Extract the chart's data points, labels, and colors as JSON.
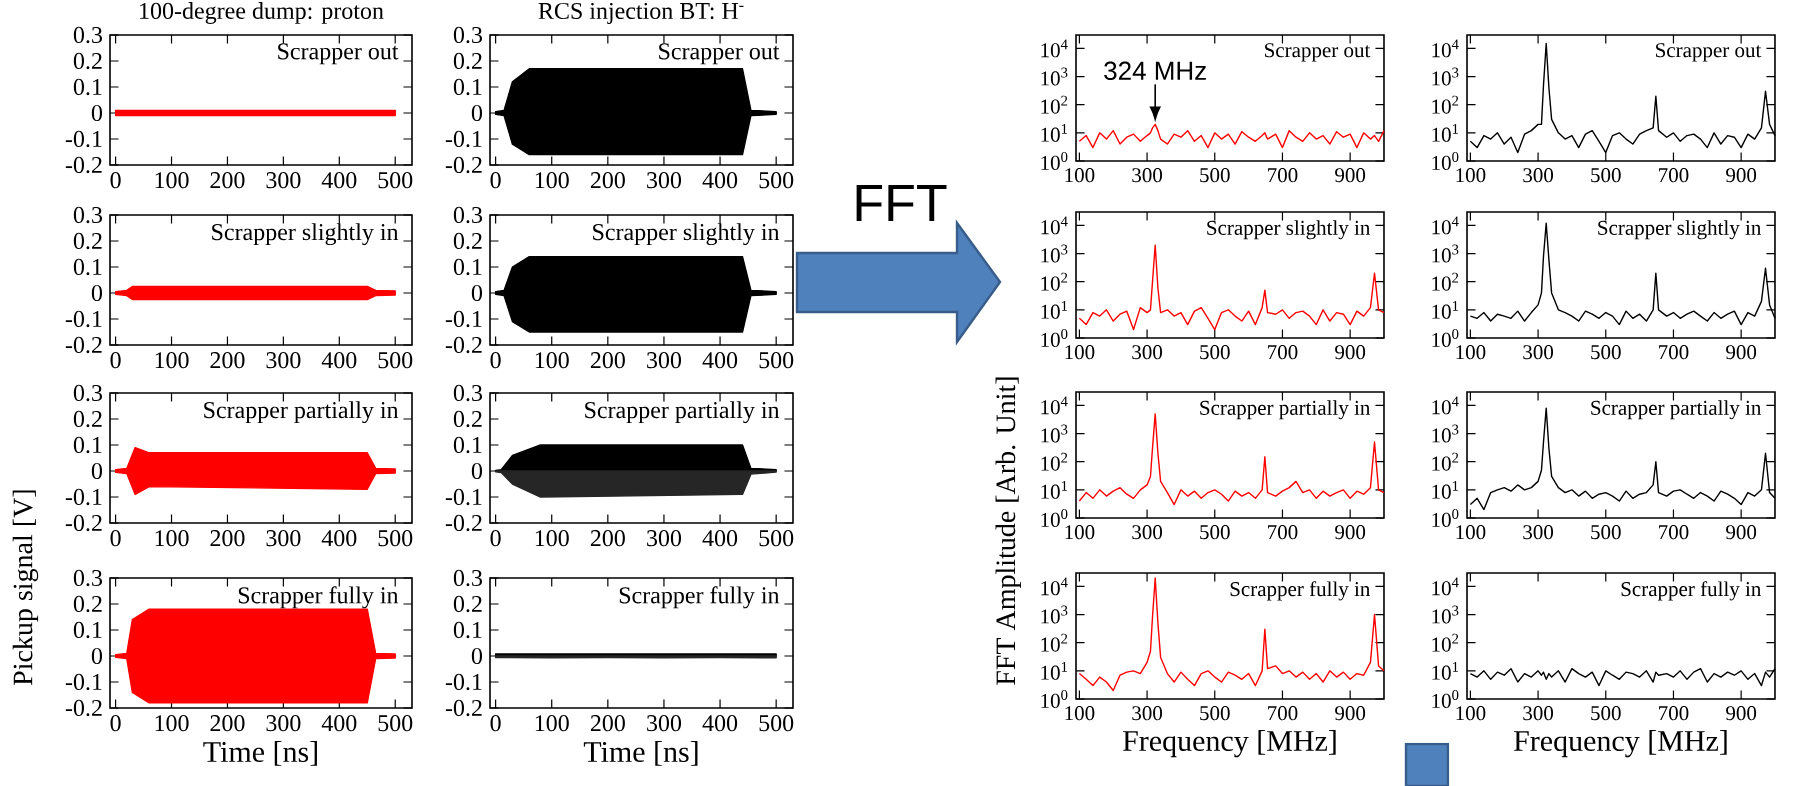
{
  "chart_data": [
    {
      "type": "line",
      "title": "100-degree dump: proton",
      "annotations": [
        "Scrapper out"
      ],
      "xlim": [
        -10,
        530
      ],
      "xticks": [
        0,
        100,
        200,
        300,
        400,
        500
      ],
      "ylim": [
        -0.2,
        0.3
      ],
      "yticks": [
        -0.2,
        -0.1,
        0,
        0.1,
        0.2,
        0.3
      ],
      "series": [
        {
          "type": "area",
          "color": "#ff0000",
          "x": [
            0,
            100,
            200,
            300,
            400,
            500
          ],
          "values": [
            0.01,
            0.01,
            0.01,
            0.01,
            0.01,
            0.01
          ]
        },
        {
          "type": "area",
          "color": "#ff0000",
          "x": [
            0,
            100,
            200,
            300,
            400,
            500
          ],
          "values": [
            -0.01,
            -0.01,
            -0.01,
            -0.01,
            -0.01,
            -0.01
          ]
        }
      ]
    },
    {
      "type": "line",
      "title": "RCS injection BT: H$^{-}$",
      "annotations": [
        "Scrapper out"
      ],
      "xlim": [
        -10,
        530
      ],
      "xticks": [
        0,
        100,
        200,
        300,
        400,
        500
      ],
      "ylim": [
        -0.2,
        0.3
      ],
      "yticks": [
        -0.2,
        -0.1,
        0,
        0.1,
        0.2,
        0.3
      ],
      "series": [
        {
          "type": "area",
          "color": "#000000",
          "x": [
            0,
            15,
            30,
            60,
            440,
            455,
            500
          ],
          "values": [
            0.005,
            0.01,
            0.12,
            0.17,
            0.17,
            0.01,
            0.005
          ]
        },
        {
          "type": "area",
          "color": "#000000",
          "x": [
            0,
            15,
            30,
            60,
            440,
            455,
            500
          ],
          "values": [
            -0.005,
            -0.01,
            -0.12,
            -0.16,
            -0.16,
            -0.01,
            -0.005
          ]
        }
      ]
    },
    {
      "type": "line",
      "log": true,
      "annotations": [
        {
          "text": "324 MHz",
          "x": 324,
          "y": 20
        },
        "Scrapper out"
      ],
      "x": [
        100,
        120,
        140,
        160,
        180,
        200,
        220,
        240,
        260,
        280,
        300,
        310,
        316,
        324,
        332,
        340,
        360,
        380,
        400,
        420,
        440,
        460,
        480,
        500,
        520,
        540,
        560,
        580,
        600,
        620,
        640,
        648,
        656,
        680,
        700,
        720,
        740,
        760,
        780,
        800,
        820,
        840,
        860,
        880,
        900,
        920,
        940,
        960,
        972,
        984,
        1000
      ],
      "xlim": [
        90,
        1000
      ],
      "xticks": [
        100,
        300,
        500,
        700,
        900
      ],
      "ylim": [
        1,
        30000
      ],
      "yticks": [
        {
          "value": 1,
          "label": "10$^{0}$"
        },
        {
          "value": 10,
          "label": "10$^{1}$"
        },
        {
          "value": 100,
          "label": "10$^{2}$"
        },
        {
          "value": 1000,
          "label": "10$^{3}$"
        },
        {
          "value": 10000,
          "label": "10$^{4}$"
        }
      ],
      "series": [
        {
          "color": "#ff0000",
          "values": [
            5,
            8,
            3,
            10,
            6,
            12,
            4,
            7,
            9,
            5,
            8,
            10,
            15,
            20,
            12,
            6,
            4,
            9,
            7,
            12,
            5,
            8,
            3,
            10,
            6,
            9,
            4,
            11,
            7,
            5,
            8,
            10,
            6,
            9,
            3,
            12,
            7,
            5,
            10,
            6,
            8,
            4,
            11,
            7,
            9,
            3,
            10,
            6,
            8,
            5,
            12
          ]
        }
      ]
    },
    {
      "type": "line",
      "log": true,
      "annotations": [
        "Scrapper out"
      ],
      "x": [
        100,
        120,
        140,
        160,
        180,
        200,
        220,
        240,
        260,
        280,
        300,
        310,
        316,
        324,
        332,
        340,
        360,
        380,
        400,
        420,
        440,
        460,
        480,
        500,
        520,
        540,
        560,
        580,
        600,
        620,
        640,
        648,
        656,
        680,
        700,
        720,
        740,
        760,
        780,
        800,
        820,
        840,
        860,
        880,
        900,
        920,
        940,
        960,
        972,
        984,
        1000
      ],
      "xlim": [
        90,
        1000
      ],
      "xticks": [
        100,
        300,
        500,
        700,
        900
      ],
      "ylim": [
        1,
        30000
      ],
      "yticks": [
        {
          "value": 1,
          "label": "10$^{0}$"
        },
        {
          "value": 10,
          "label": "10$^{1}$"
        },
        {
          "value": 100,
          "label": "10$^{2}$"
        },
        {
          "value": 1000,
          "label": "10$^{3}$"
        },
        {
          "value": 10000,
          "label": "10$^{4}$"
        }
      ],
      "series": [
        {
          "color": "#000000",
          "values": [
            5,
            3,
            8,
            6,
            10,
            4,
            7,
            2,
            9,
            12,
            20,
            20,
            500,
            15000,
            400,
            30,
            10,
            6,
            8,
            3,
            9,
            12,
            5,
            2,
            8,
            10,
            6,
            4,
            9,
            12,
            15,
            200,
            12,
            7,
            10,
            5,
            8,
            9,
            6,
            3,
            10,
            4,
            8,
            7,
            3,
            9,
            6,
            15,
            300,
            20,
            8
          ]
        }
      ]
    },
    {
      "type": "line",
      "annotations": [
        "Scrapper slightly in"
      ],
      "xlim": [
        -10,
        530
      ],
      "xticks": [
        0,
        100,
        200,
        300,
        400,
        500
      ],
      "ylim": [
        -0.2,
        0.3
      ],
      "yticks": [
        -0.2,
        -0.1,
        0,
        0.1,
        0.2,
        0.3
      ],
      "series": [
        {
          "type": "area",
          "color": "#ff0000",
          "x": [
            0,
            20,
            30,
            450,
            465,
            500
          ],
          "values": [
            0.005,
            0.01,
            0.025,
            0.025,
            0.01,
            0.008
          ]
        },
        {
          "type": "area",
          "color": "#ff0000",
          "x": [
            0,
            20,
            30,
            450,
            465,
            500
          ],
          "values": [
            -0.005,
            -0.01,
            -0.025,
            -0.025,
            -0.01,
            -0.008
          ]
        }
      ]
    },
    {
      "type": "line",
      "annotations": [
        "Scrapper slightly in"
      ],
      "xlim": [
        -10,
        530
      ],
      "xticks": [
        0,
        100,
        200,
        300,
        400,
        500
      ],
      "ylim": [
        -0.2,
        0.3
      ],
      "yticks": [
        -0.2,
        -0.1,
        0,
        0.1,
        0.2,
        0.3
      ],
      "series": [
        {
          "type": "area",
          "color": "#000000",
          "x": [
            0,
            15,
            30,
            60,
            440,
            455,
            500
          ],
          "values": [
            0.005,
            0.01,
            0.1,
            0.14,
            0.14,
            0.01,
            0.005
          ]
        },
        {
          "type": "area",
          "color": "#000000",
          "x": [
            0,
            15,
            30,
            60,
            440,
            455,
            500
          ],
          "values": [
            -0.005,
            -0.01,
            -0.11,
            -0.15,
            -0.15,
            -0.01,
            -0.005
          ]
        }
      ]
    },
    {
      "type": "line",
      "log": true,
      "annotations": [
        "Scrapper slightly in"
      ],
      "x": [
        100,
        120,
        140,
        160,
        180,
        200,
        220,
        240,
        260,
        280,
        300,
        310,
        316,
        324,
        332,
        340,
        360,
        380,
        400,
        420,
        440,
        460,
        480,
        500,
        520,
        540,
        560,
        580,
        600,
        620,
        640,
        648,
        656,
        680,
        700,
        720,
        740,
        760,
        780,
        800,
        820,
        840,
        860,
        880,
        900,
        920,
        940,
        960,
        972,
        984,
        1000
      ],
      "xlim": [
        90,
        1000
      ],
      "xticks": [
        100,
        300,
        500,
        700,
        900
      ],
      "ylim": [
        1,
        30000
      ],
      "yticks": [
        {
          "value": 1,
          "label": "10$^{0}$"
        },
        {
          "value": 10,
          "label": "10$^{1}$"
        },
        {
          "value": 100,
          "label": "10$^{2}$"
        },
        {
          "value": 1000,
          "label": "10$^{3}$"
        },
        {
          "value": 10000,
          "label": "10$^{4}$"
        }
      ],
      "series": [
        {
          "color": "#ff0000",
          "values": [
            5,
            3,
            8,
            6,
            10,
            4,
            7,
            9,
            2,
            12,
            8,
            10,
            100,
            2000,
            60,
            8,
            10,
            6,
            8,
            3,
            9,
            12,
            5,
            2,
            8,
            10,
            6,
            4,
            9,
            3,
            12,
            50,
            8,
            7,
            10,
            5,
            8,
            9,
            6,
            3,
            10,
            4,
            8,
            7,
            3,
            9,
            6,
            12,
            200,
            10,
            8
          ]
        }
      ]
    },
    {
      "type": "line",
      "log": true,
      "annotations": [
        "Scrapper slightly in"
      ],
      "x": [
        100,
        120,
        140,
        160,
        180,
        200,
        220,
        240,
        260,
        280,
        300,
        310,
        316,
        324,
        332,
        340,
        360,
        380,
        400,
        420,
        440,
        460,
        480,
        500,
        520,
        540,
        560,
        580,
        600,
        620,
        640,
        648,
        656,
        680,
        700,
        720,
        740,
        760,
        780,
        800,
        820,
        840,
        860,
        880,
        900,
        920,
        940,
        960,
        972,
        984,
        1000
      ],
      "xlim": [
        90,
        1000
      ],
      "xticks": [
        100,
        300,
        500,
        700,
        900
      ],
      "ylim": [
        1,
        30000
      ],
      "yticks": [
        {
          "value": 1,
          "label": "10$^{0}$"
        },
        {
          "value": 10,
          "label": "10$^{1}$"
        },
        {
          "value": 100,
          "label": "10$^{2}$"
        },
        {
          "value": 1000,
          "label": "10$^{3}$"
        },
        {
          "value": 10000,
          "label": "10$^{4}$"
        }
      ],
      "series": [
        {
          "color": "#000000",
          "values": [
            6,
            5,
            8,
            4,
            7,
            6,
            5,
            9,
            4,
            8,
            15,
            40,
            800,
            12000,
            600,
            40,
            10,
            8,
            6,
            4,
            9,
            7,
            5,
            8,
            6,
            3,
            9,
            5,
            7,
            4,
            10,
            200,
            10,
            6,
            8,
            5,
            7,
            9,
            6,
            4,
            8,
            5,
            7,
            9,
            3,
            8,
            6,
            20,
            300,
            15,
            5
          ]
        }
      ]
    },
    {
      "type": "line",
      "annotations": [
        "Scrapper partially in"
      ],
      "xlim": [
        -10,
        530
      ],
      "xticks": [
        0,
        100,
        200,
        300,
        400,
        500
      ],
      "ylim": [
        -0.2,
        0.3
      ],
      "yticks": [
        -0.2,
        -0.1,
        0,
        0.1,
        0.2,
        0.3
      ],
      "series": [
        {
          "type": "area",
          "color": "#ff0000",
          "x": [
            0,
            20,
            35,
            60,
            450,
            465,
            500
          ],
          "values": [
            0.005,
            0.01,
            0.09,
            0.07,
            0.07,
            0.01,
            0.008
          ]
        },
        {
          "type": "area",
          "color": "#ff0000",
          "x": [
            0,
            20,
            35,
            60,
            450,
            465,
            500
          ],
          "values": [
            -0.005,
            -0.01,
            -0.09,
            -0.06,
            -0.07,
            -0.01,
            -0.008
          ]
        }
      ]
    },
    {
      "type": "line",
      "annotations": [
        "Scrapper partially in"
      ],
      "xlim": [
        -10,
        530
      ],
      "xticks": [
        0,
        100,
        200,
        300,
        400,
        500
      ],
      "ylim": [
        -0.2,
        0.3
      ],
      "yticks": [
        -0.2,
        -0.1,
        0,
        0.1,
        0.2,
        0.3
      ],
      "series": [
        {
          "type": "area",
          "color": "#000000",
          "x": [
            0,
            10,
            30,
            80,
            440,
            455,
            500
          ],
          "values": [
            0.002,
            0.005,
            0.06,
            0.1,
            0.1,
            0.01,
            0.005
          ]
        },
        {
          "type": "area",
          "color": "#262626",
          "x": [
            0,
            10,
            30,
            80,
            440,
            455,
            500
          ],
          "values": [
            -0.003,
            -0.006,
            -0.05,
            -0.1,
            -0.09,
            -0.012,
            -0.004
          ]
        }
      ]
    },
    {
      "type": "line",
      "log": true,
      "ylabel": "FFT Amplitude [Arb. Unit]",
      "annotations": [
        "Scrapper partially in"
      ],
      "x": [
        100,
        120,
        140,
        160,
        180,
        200,
        220,
        240,
        260,
        280,
        300,
        310,
        316,
        324,
        332,
        340,
        360,
        380,
        400,
        420,
        440,
        460,
        480,
        500,
        520,
        540,
        560,
        580,
        600,
        620,
        640,
        648,
        656,
        680,
        700,
        720,
        740,
        760,
        780,
        800,
        820,
        840,
        860,
        880,
        900,
        920,
        940,
        960,
        972,
        984,
        1000
      ],
      "xlim": [
        90,
        1000
      ],
      "xticks": [
        100,
        300,
        500,
        700,
        900
      ],
      "ylim": [
        1,
        30000
      ],
      "yticks": [
        {
          "value": 1,
          "label": "10$^{0}$"
        },
        {
          "value": 10,
          "label": "10$^{1}$"
        },
        {
          "value": 100,
          "label": "10$^{2}$"
        },
        {
          "value": 1000,
          "label": "10$^{3}$"
        },
        {
          "value": 10000,
          "label": "10$^{4}$"
        }
      ],
      "series": [
        {
          "color": "#ff0000",
          "values": [
            4,
            8,
            5,
            10,
            6,
            9,
            12,
            7,
            5,
            10,
            15,
            30,
            300,
            5000,
            200,
            20,
            8,
            3,
            10,
            6,
            9,
            5,
            8,
            10,
            7,
            4,
            9,
            6,
            8,
            5,
            10,
            150,
            8,
            6,
            9,
            12,
            20,
            8,
            10,
            5,
            9,
            6,
            8,
            10,
            5,
            9,
            7,
            12,
            500,
            10,
            8
          ]
        }
      ]
    },
    {
      "type": "line",
      "log": true,
      "annotations": [
        "Scrapper partially in"
      ],
      "x": [
        100,
        120,
        140,
        160,
        180,
        200,
        220,
        240,
        260,
        280,
        300,
        310,
        316,
        324,
        332,
        340,
        360,
        380,
        400,
        420,
        440,
        460,
        480,
        500,
        520,
        540,
        560,
        580,
        600,
        620,
        640,
        648,
        656,
        680,
        700,
        720,
        740,
        760,
        780,
        800,
        820,
        840,
        860,
        880,
        900,
        920,
        940,
        960,
        972,
        984,
        1000
      ],
      "xlim": [
        90,
        1000
      ],
      "xticks": [
        100,
        300,
        500,
        700,
        900
      ],
      "ylim": [
        1,
        30000
      ],
      "yticks": [
        {
          "value": 1,
          "label": "10$^{0}$"
        },
        {
          "value": 10,
          "label": "10$^{1}$"
        },
        {
          "value": 100,
          "label": "10$^{2}$"
        },
        {
          "value": 1000,
          "label": "10$^{3}$"
        },
        {
          "value": 10000,
          "label": "10$^{4}$"
        }
      ],
      "series": [
        {
          "color": "#000000",
          "values": [
            3,
            5,
            2,
            8,
            10,
            12,
            9,
            15,
            10,
            12,
            20,
            50,
            500,
            8000,
            300,
            30,
            12,
            8,
            10,
            6,
            9,
            5,
            7,
            8,
            6,
            4,
            9,
            5,
            7,
            8,
            15,
            100,
            8,
            6,
            9,
            10,
            7,
            5,
            8,
            6,
            4,
            9,
            7,
            5,
            3,
            8,
            6,
            10,
            200,
            8,
            5
          ]
        }
      ]
    },
    {
      "type": "line",
      "xlabel": "Time [ns]",
      "ylabel": "Pickup signal [V]",
      "annotations": [
        "Scrapper fully in"
      ],
      "xlim": [
        -10,
        530
      ],
      "xticks": [
        0,
        100,
        200,
        300,
        400,
        500
      ],
      "ylim": [
        -0.2,
        0.3
      ],
      "yticks": [
        -0.2,
        -0.1,
        0,
        0.1,
        0.2,
        0.3
      ],
      "series": [
        {
          "type": "area",
          "color": "#ff0000",
          "x": [
            0,
            20,
            30,
            60,
            450,
            465,
            500
          ],
          "values": [
            0.005,
            0.01,
            0.14,
            0.18,
            0.18,
            0.01,
            0.008
          ]
        },
        {
          "type": "area",
          "color": "#ff0000",
          "x": [
            0,
            20,
            30,
            60,
            450,
            465,
            500
          ],
          "values": [
            -0.005,
            -0.01,
            -0.14,
            -0.18,
            -0.18,
            -0.01,
            -0.008
          ]
        }
      ]
    },
    {
      "type": "line",
      "xlabel": "Time [ns]",
      "annotations": [
        "Scrapper fully in"
      ],
      "xlim": [
        -10,
        530
      ],
      "xticks": [
        0,
        100,
        200,
        300,
        400,
        500
      ],
      "ylim": [
        -0.2,
        0.3
      ],
      "yticks": [
        -0.2,
        -0.1,
        0,
        0.1,
        0.2,
        0.3
      ],
      "series": [
        {
          "type": "area",
          "color": "#000000",
          "x": [
            0,
            100,
            200,
            300,
            400,
            500
          ],
          "values": [
            0.008,
            0.008,
            0.008,
            0.008,
            0.008,
            0.008
          ]
        },
        {
          "type": "area",
          "color": "#262626",
          "x": [
            0,
            100,
            200,
            300,
            400,
            500
          ],
          "values": [
            -0.006,
            -0.007,
            -0.006,
            -0.007,
            -0.006,
            -0.007
          ]
        }
      ]
    },
    {
      "type": "line",
      "log": true,
      "xlabel": "Frequency [MHz]",
      "annotations": [
        "Scrapper fully in"
      ],
      "x": [
        100,
        120,
        140,
        160,
        180,
        200,
        220,
        240,
        260,
        280,
        300,
        310,
        316,
        324,
        332,
        340,
        360,
        380,
        400,
        420,
        440,
        460,
        480,
        500,
        520,
        540,
        560,
        580,
        600,
        620,
        640,
        648,
        656,
        680,
        700,
        720,
        740,
        760,
        780,
        800,
        820,
        840,
        860,
        880,
        900,
        920,
        940,
        960,
        972,
        984,
        1000
      ],
      "xlim": [
        90,
        1000
      ],
      "xticks": [
        100,
        300,
        500,
        700,
        900
      ],
      "ylim": [
        1,
        30000
      ],
      "yticks": [
        {
          "value": 1,
          "label": "10$^{0}$"
        },
        {
          "value": 10,
          "label": "10$^{1}$"
        },
        {
          "value": 100,
          "label": "10$^{2}$"
        },
        {
          "value": 1000,
          "label": "10$^{3}$"
        },
        {
          "value": 10000,
          "label": "10$^{4}$"
        }
      ],
      "series": [
        {
          "color": "#ff0000",
          "values": [
            8,
            5,
            3,
            6,
            4,
            2,
            7,
            9,
            10,
            8,
            20,
            50,
            800,
            20000,
            500,
            30,
            8,
            4,
            9,
            5,
            3,
            8,
            10,
            6,
            4,
            9,
            7,
            5,
            8,
            3,
            10,
            300,
            12,
            15,
            8,
            10,
            6,
            9,
            5,
            8,
            4,
            10,
            6,
            9,
            5,
            8,
            7,
            20,
            1000,
            15,
            10
          ]
        }
      ]
    },
    {
      "type": "line",
      "log": true,
      "xlabel": "Frequency [MHz]",
      "annotations": [
        "Scrapper fully in"
      ],
      "x": [
        100,
        120,
        140,
        160,
        180,
        200,
        220,
        240,
        260,
        280,
        300,
        310,
        316,
        324,
        332,
        340,
        360,
        380,
        400,
        420,
        440,
        460,
        480,
        500,
        520,
        540,
        560,
        580,
        600,
        620,
        640,
        648,
        656,
        680,
        700,
        720,
        740,
        760,
        780,
        800,
        820,
        840,
        860,
        880,
        900,
        920,
        940,
        960,
        972,
        984,
        1000
      ],
      "xlim": [
        90,
        1000
      ],
      "xticks": [
        100,
        300,
        500,
        700,
        900
      ],
      "ylim": [
        1,
        30000
      ],
      "yticks": [
        {
          "value": 1,
          "label": "10$^{0}$"
        },
        {
          "value": 10,
          "label": "10$^{1}$"
        },
        {
          "value": 100,
          "label": "10$^{2}$"
        },
        {
          "value": 1000,
          "label": "10$^{3}$"
        },
        {
          "value": 10000,
          "label": "10$^{4}$"
        }
      ],
      "series": [
        {
          "color": "#000000",
          "values": [
            8,
            6,
            10,
            5,
            9,
            7,
            12,
            4,
            8,
            6,
            10,
            7,
            9,
            5,
            8,
            6,
            10,
            4,
            12,
            8,
            6,
            9,
            3,
            10,
            7,
            5,
            9,
            8,
            6,
            10,
            4,
            9,
            7,
            8,
            6,
            10,
            5,
            9,
            12,
            4,
            8,
            6,
            9,
            7,
            10,
            5,
            8,
            3,
            9,
            6,
            12
          ]
        }
      ]
    },
    {
      "type": "other",
      "annotations": [
        "FFT"
      ]
    }
  ]
}
